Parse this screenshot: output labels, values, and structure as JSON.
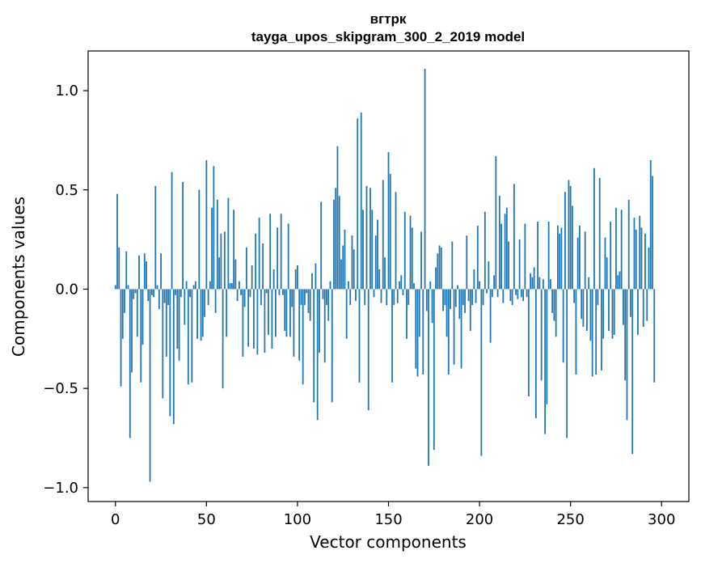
{
  "chart_data": {
    "type": "bar",
    "title": "вгтрк",
    "subtitle": "tayga_upos_skipgram_300_2_2019 model",
    "xlabel": "Vector components",
    "ylabel": "Components values",
    "xlim": [
      -15,
      315
    ],
    "ylim": [
      -1.07,
      1.2
    ],
    "xticks": [
      0,
      50,
      100,
      150,
      200,
      250,
      300
    ],
    "xtick_labels": [
      "0",
      "50",
      "100",
      "150",
      "200",
      "250",
      "300"
    ],
    "yticks": [
      -1.0,
      -0.5,
      0.0,
      0.5,
      1.0
    ],
    "ytick_labels": [
      "−1.0",
      "−0.5",
      "0.0",
      "0.5",
      "1.0"
    ],
    "bar_color": "#1f77b4",
    "values": [
      0.02,
      0.48,
      0.21,
      -0.49,
      -0.25,
      -0.12,
      0.19,
      0.02,
      -0.75,
      -0.42,
      -0.05,
      -0.02,
      -0.24,
      0.17,
      -0.47,
      -0.28,
      0.18,
      0.14,
      -0.06,
      -0.97,
      -0.03,
      -0.04,
      0.52,
      0.02,
      -0.1,
      0.18,
      -0.55,
      -0.07,
      -0.34,
      -0.08,
      -0.64,
      0.59,
      -0.68,
      -0.03,
      -0.3,
      -0.36,
      -0.04,
      0.54,
      -0.18,
      0.04,
      -0.48,
      -0.04,
      -0.47,
      0.02,
      0.04,
      -0.25,
      0.5,
      -0.26,
      -0.24,
      -0.14,
      0.65,
      -0.08,
      0.04,
      0.41,
      0.62,
      -0.12,
      0.45,
      0.16,
      0.28,
      -0.5,
      0.29,
      -0.24,
      0.46,
      0.03,
      0.03,
      0.4,
      0.15,
      -0.06,
      0.04,
      -0.03,
      -0.34,
      -0.09,
      0.21,
      -0.29,
      -0.04,
      0.12,
      -0.3,
      0.28,
      -0.33,
      0.36,
      -0.08,
      0.23,
      -0.32,
      -0.02,
      -0.23,
      0.38,
      -0.3,
      0.1,
      -0.24,
      0.31,
      -0.03,
      0.38,
      -0.03,
      -0.21,
      -0.24,
      0.33,
      -0.24,
      -0.09,
      -0.34,
      0.1,
      0.12,
      -0.36,
      -0.08,
      -0.48,
      -0.08,
      -0.02,
      -0.12,
      -0.16,
      0.08,
      -0.57,
      0.13,
      -0.66,
      -0.32,
      0.44,
      -0.05,
      -0.37,
      -0.08,
      -0.16,
      0.04,
      -0.57,
      0.45,
      0.51,
      0.72,
      0.47,
      0.15,
      0.22,
      0.3,
      -0.25,
      0.04,
      -0.08,
      0.27,
      0.2,
      -0.06,
      0.86,
      -0.47,
      0.89,
      0.4,
      -0.08,
      0.52,
      -0.61,
      0.51,
      0.4,
      -0.04,
      0.27,
      0.35,
      0.1,
      -0.07,
      0.55,
      0.16,
      -0.08,
      0.69,
      0.58,
      -0.47,
      -0.08,
      0.49,
      -0.07,
      0.04,
      0.07,
      -0.03,
      0.39,
      -0.25,
      -0.08,
      0.37,
      0.31,
      0.03,
      -0.4,
      -0.44,
      -0.24,
      0.29,
      -0.43,
      1.11,
      -0.11,
      -0.89,
      0.04,
      -0.17,
      -0.81,
      0.11,
      0.18,
      0.22,
      0.21,
      -0.11,
      -0.08,
      -0.24,
      -0.43,
      -0.1,
      0.24,
      -0.38,
      -0.09,
      0.02,
      -0.15,
      -0.4,
      -0.08,
      -0.12,
      0.27,
      -0.06,
      -0.21,
      -0.08,
      0.1,
      -0.07,
      0.32,
      0.04,
      -0.84,
      -0.08,
      0.39,
      -0.02,
      0.14,
      -0.27,
      -0.04,
      0.07,
      0.67,
      -0.04,
      0.47,
      0.33,
      -0.07,
      0.38,
      0.41,
      0.24,
      -0.06,
      -0.08,
      0.53,
      -0.03,
      -0.05,
      0.25,
      -0.04,
      -0.06,
      0.33,
      -0.04,
      -0.54,
      0.08,
      0.06,
      0.11,
      -0.65,
      0.34,
      0.06,
      -0.46,
      0.05,
      -0.73,
      -0.58,
      0.34,
      0.05,
      -0.12,
      -0.16,
      -0.24,
      0.32,
      0.28,
      0.31,
      -0.37,
      0.49,
      -0.75,
      0.55,
      0.52,
      0.42,
      -0.07,
      -0.43,
      0.26,
      0.32,
      -0.15,
      -0.19,
      0.29,
      -0.21,
      0.06,
      -0.26,
      -0.44,
      0.61,
      -0.43,
      -0.08,
      0.56,
      -0.41,
      -0.25,
      0.26,
      0.16,
      -0.21,
      0.34,
      -0.25,
      -0.23,
      0.41,
      0.07,
      0.09,
      0.4,
      -0.18,
      -0.46,
      -0.66,
      0.45,
      -0.14,
      -0.83,
      0.36,
      0.3,
      -0.23,
      0.37,
      0.31,
      -0.19,
      0.28,
      -0.16,
      0.21,
      0.65,
      0.57,
      -0.47
    ]
  }
}
